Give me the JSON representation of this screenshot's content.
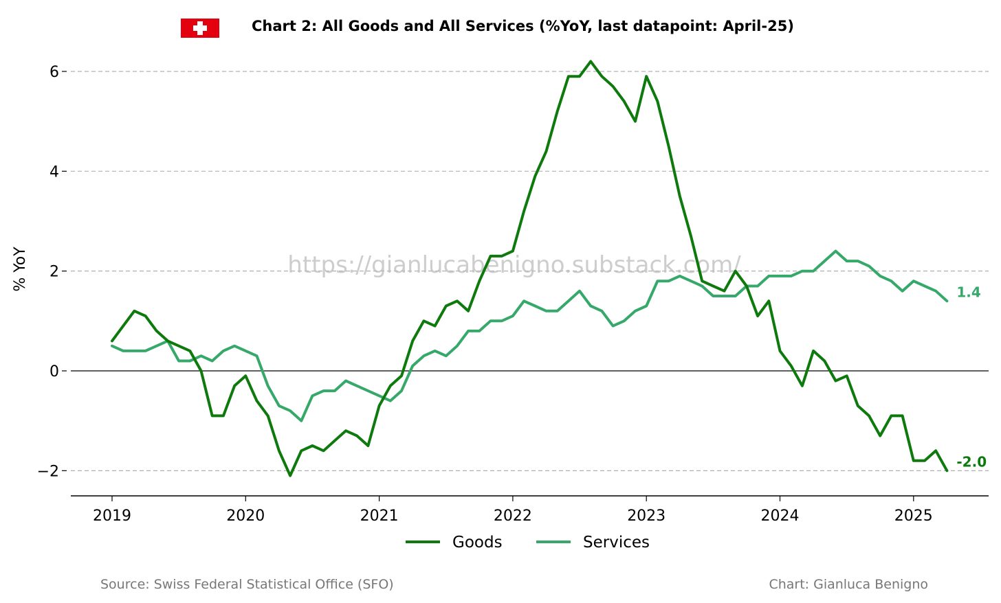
{
  "title": "Chart 2: All Goods and All Services (%YoY, last datapoint: April-25)",
  "watermark": "https://gianlucabenigno.substack.com/",
  "source": "Source: Swiss Federal Statistical Office (SFO)",
  "credit": "Chart: Gianluca Benigno",
  "colors": {
    "goods": "#0e7a0d",
    "services": "#35a86a",
    "flag_red": "#e3000f",
    "grid": "#b0b0b0"
  },
  "icons": {
    "flag": "swiss-flag-icon"
  },
  "chart_data": {
    "type": "line",
    "title": "Chart 2: All Goods and All Services (%YoY, last datapoint: April-25)",
    "xlabel": "",
    "ylabel": "% YoY",
    "x_start": "2019-01",
    "x_end": "2025-04",
    "x_ticks": [
      "2019",
      "2020",
      "2021",
      "2022",
      "2023",
      "2024",
      "2025"
    ],
    "y_ticks": [
      "−2",
      "0",
      "2",
      "4",
      "6"
    ],
    "y_tick_values": [
      -2,
      0,
      2,
      4,
      6
    ],
    "ylim": [
      -2.5,
      6.6
    ],
    "grid": "horizontal dashed",
    "legend_position": "bottom-center",
    "series": [
      {
        "name": "Goods",
        "end_label": "-2.0",
        "values": [
          0.6,
          0.9,
          1.2,
          1.1,
          0.8,
          0.6,
          0.5,
          0.4,
          0.0,
          -0.9,
          -0.9,
          -0.3,
          -0.1,
          -0.6,
          -0.9,
          -1.6,
          -2.1,
          -1.6,
          -1.5,
          -1.6,
          -1.4,
          -1.2,
          -1.3,
          -1.5,
          -0.7,
          -0.3,
          -0.1,
          0.6,
          1.0,
          0.9,
          1.3,
          1.4,
          1.2,
          1.8,
          2.3,
          2.3,
          2.4,
          3.2,
          3.9,
          4.4,
          5.2,
          5.9,
          5.9,
          6.2,
          5.9,
          5.7,
          5.4,
          5.0,
          5.9,
          5.4,
          4.5,
          3.5,
          2.7,
          1.8,
          1.7,
          1.6,
          2.0,
          1.7,
          1.1,
          1.4,
          0.4,
          0.1,
          -0.3,
          0.4,
          0.2,
          -0.2,
          -0.1,
          -0.7,
          -0.9,
          -1.3,
          -0.9,
          -0.9,
          -1.8,
          -1.8,
          -1.6,
          -2.0
        ]
      },
      {
        "name": "Services",
        "end_label": "1.4",
        "values": [
          0.5,
          0.4,
          0.4,
          0.4,
          0.5,
          0.6,
          0.2,
          0.2,
          0.3,
          0.2,
          0.4,
          0.5,
          0.4,
          0.3,
          -0.3,
          -0.7,
          -0.8,
          -1.0,
          -0.5,
          -0.4,
          -0.4,
          -0.2,
          -0.3,
          -0.4,
          -0.5,
          -0.6,
          -0.4,
          0.1,
          0.3,
          0.4,
          0.3,
          0.5,
          0.8,
          0.8,
          1.0,
          1.0,
          1.1,
          1.4,
          1.3,
          1.2,
          1.2,
          1.4,
          1.6,
          1.3,
          1.2,
          0.9,
          1.0,
          1.2,
          1.3,
          1.8,
          1.8,
          1.9,
          1.8,
          1.7,
          1.5,
          1.5,
          1.5,
          1.7,
          1.7,
          1.9,
          1.9,
          1.9,
          2.0,
          2.0,
          2.2,
          2.4,
          2.2,
          2.2,
          2.1,
          1.9,
          1.8,
          1.6,
          1.8,
          1.7,
          1.6,
          1.4
        ]
      }
    ]
  }
}
